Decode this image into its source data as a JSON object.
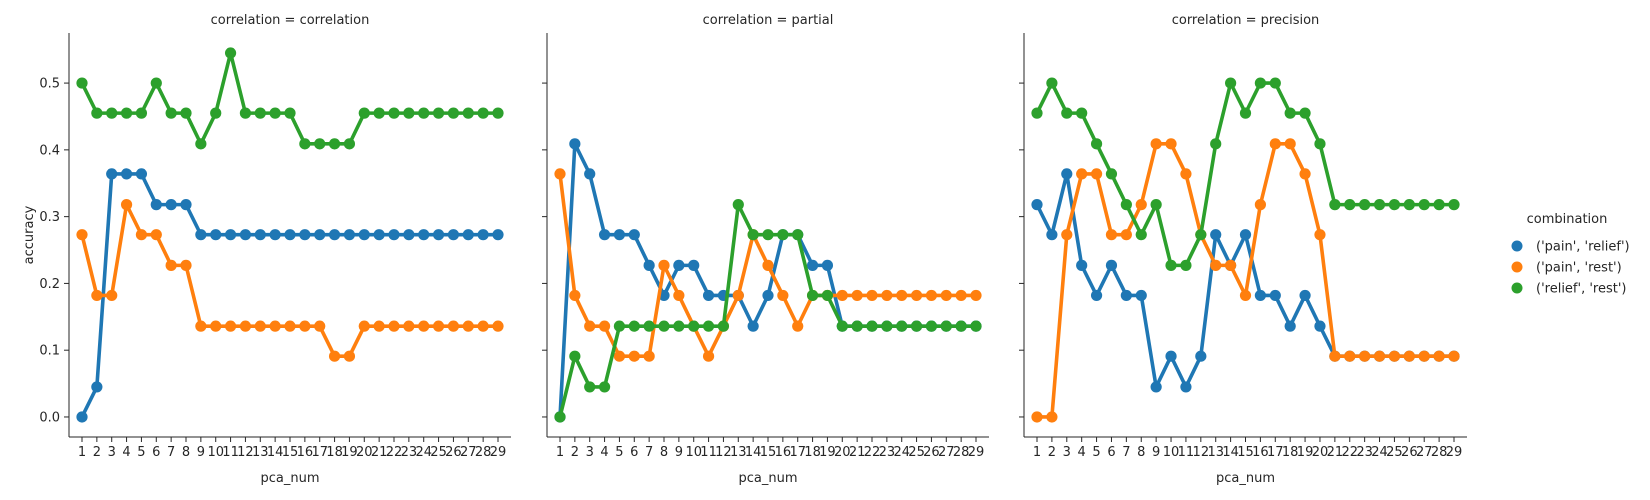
{
  "chart_data": {
    "type": "line",
    "x": [
      1,
      2,
      3,
      4,
      5,
      6,
      7,
      8,
      9,
      10,
      11,
      12,
      13,
      14,
      15,
      16,
      17,
      18,
      19,
      20,
      21,
      22,
      23,
      24,
      25,
      26,
      27,
      28,
      29
    ],
    "x_tick_labels": [
      "1",
      "2",
      "3",
      "4",
      "5",
      "6",
      "7",
      "8",
      "9",
      "10",
      "11",
      "12",
      "13",
      "14",
      "15",
      "16",
      "17",
      "18",
      "19",
      "20",
      "21",
      "22",
      "23",
      "24",
      "25",
      "26",
      "27",
      "28",
      "29"
    ],
    "xlabel": "pca_num",
    "ylabel": "accuracy",
    "yticks": [
      0.0,
      0.1,
      0.2,
      0.3,
      0.4,
      0.5
    ],
    "ytick_labels": [
      "0.0",
      "0.1",
      "0.2",
      "0.3",
      "0.4",
      "0.5"
    ],
    "ylim": [
      -0.03,
      0.575
    ],
    "grid": false,
    "legend": {
      "title": "combination",
      "placement": "right",
      "entries": [
        "('pain', 'relief')",
        "('pain', 'rest')",
        "('relief', 'rest')"
      ]
    },
    "colors": [
      "#1f77b4",
      "#ff7f0e",
      "#2ca02c"
    ],
    "panels": [
      {
        "title": "correlation = correlation",
        "series": [
          {
            "name": "('pain', 'relief')",
            "values": [
              0.0,
              0.045,
              0.364,
              0.364,
              0.364,
              0.318,
              0.318,
              0.318,
              0.273,
              0.273,
              0.273,
              0.273,
              0.273,
              0.273,
              0.273,
              0.273,
              0.273,
              0.273,
              0.273,
              0.273,
              0.273,
              0.273,
              0.273,
              0.273,
              0.273,
              0.273,
              0.273,
              0.273,
              0.273
            ]
          },
          {
            "name": "('pain', 'rest')",
            "values": [
              0.273,
              0.182,
              0.182,
              0.318,
              0.273,
              0.273,
              0.227,
              0.227,
              0.136,
              0.136,
              0.136,
              0.136,
              0.136,
              0.136,
              0.136,
              0.136,
              0.136,
              0.091,
              0.091,
              0.136,
              0.136,
              0.136,
              0.136,
              0.136,
              0.136,
              0.136,
              0.136,
              0.136,
              0.136
            ]
          },
          {
            "name": "('relief', 'rest')",
            "values": [
              0.5,
              0.455,
              0.455,
              0.455,
              0.455,
              0.5,
              0.455,
              0.455,
              0.409,
              0.455,
              0.545,
              0.455,
              0.455,
              0.455,
              0.455,
              0.409,
              0.409,
              0.409,
              0.409,
              0.455,
              0.455,
              0.455,
              0.455,
              0.455,
              0.455,
              0.455,
              0.455,
              0.455,
              0.455
            ]
          }
        ]
      },
      {
        "title": "correlation = partial",
        "series": [
          {
            "name": "('pain', 'relief')",
            "values": [
              0.0,
              0.409,
              0.364,
              0.273,
              0.273,
              0.273,
              0.227,
              0.182,
              0.227,
              0.227,
              0.182,
              0.182,
              0.182,
              0.136,
              0.182,
              0.273,
              0.273,
              0.227,
              0.227,
              0.136,
              0.136,
              0.136,
              0.136,
              0.136,
              0.136,
              0.136,
              0.136,
              0.136,
              0.136
            ]
          },
          {
            "name": "('pain', 'rest')",
            "values": [
              0.364,
              0.182,
              0.136,
              0.136,
              0.091,
              0.091,
              0.091,
              0.227,
              0.182,
              0.136,
              0.091,
              0.136,
              0.182,
              0.273,
              0.227,
              0.182,
              0.136,
              0.182,
              0.182,
              0.182,
              0.182,
              0.182,
              0.182,
              0.182,
              0.182,
              0.182,
              0.182,
              0.182,
              0.182
            ]
          },
          {
            "name": "('relief', 'rest')",
            "values": [
              0.0,
              0.091,
              0.045,
              0.045,
              0.136,
              0.136,
              0.136,
              0.136,
              0.136,
              0.136,
              0.136,
              0.136,
              0.318,
              0.273,
              0.273,
              0.273,
              0.273,
              0.182,
              0.182,
              0.136,
              0.136,
              0.136,
              0.136,
              0.136,
              0.136,
              0.136,
              0.136,
              0.136,
              0.136
            ]
          }
        ]
      },
      {
        "title": "correlation = precision",
        "series": [
          {
            "name": "('pain', 'relief')",
            "values": [
              0.318,
              0.273,
              0.364,
              0.227,
              0.182,
              0.227,
              0.182,
              0.182,
              0.045,
              0.091,
              0.045,
              0.091,
              0.273,
              0.227,
              0.273,
              0.182,
              0.182,
              0.136,
              0.182,
              0.136,
              0.091,
              0.091,
              0.091,
              0.091,
              0.091,
              0.091,
              0.091,
              0.091,
              0.091
            ]
          },
          {
            "name": "('pain', 'rest')",
            "values": [
              0.0,
              0.0,
              0.273,
              0.364,
              0.364,
              0.273,
              0.273,
              0.318,
              0.409,
              0.409,
              0.364,
              0.273,
              0.227,
              0.227,
              0.182,
              0.318,
              0.409,
              0.409,
              0.364,
              0.273,
              0.091,
              0.091,
              0.091,
              0.091,
              0.091,
              0.091,
              0.091,
              0.091,
              0.091
            ]
          },
          {
            "name": "('relief', 'rest')",
            "values": [
              0.455,
              0.5,
              0.455,
              0.455,
              0.409,
              0.364,
              0.318,
              0.273,
              0.318,
              0.227,
              0.227,
              0.273,
              0.409,
              0.5,
              0.455,
              0.5,
              0.5,
              0.455,
              0.455,
              0.409,
              0.318,
              0.318,
              0.318,
              0.318,
              0.318,
              0.318,
              0.318,
              0.318,
              0.318
            ]
          }
        ]
      }
    ]
  }
}
